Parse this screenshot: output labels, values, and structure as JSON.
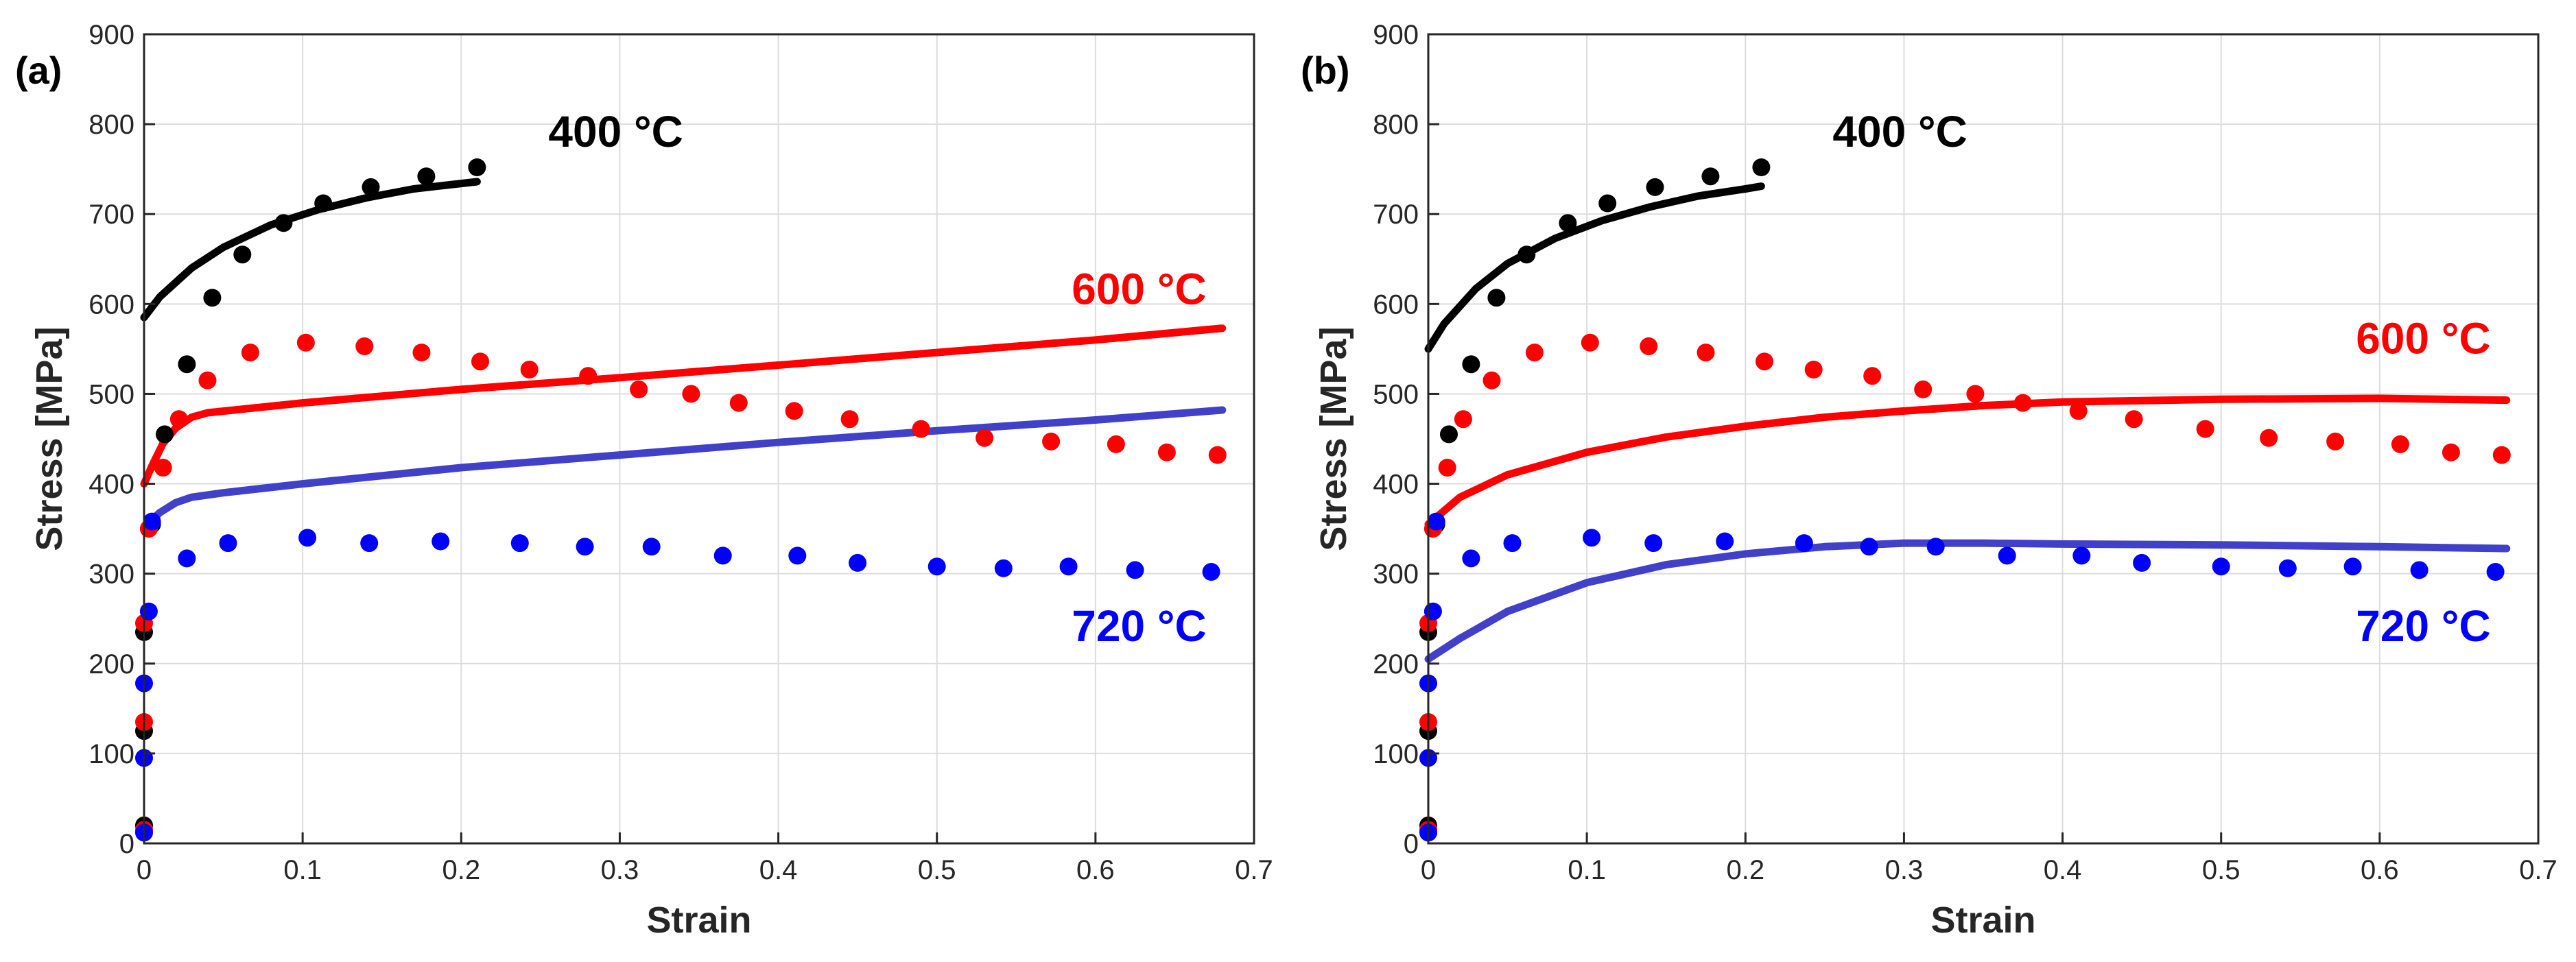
{
  "chart_data": [
    {
      "type": "scatter",
      "panel_label": "(a)",
      "xlabel": "Strain",
      "ylabel": "Stress [MPa]",
      "xlim": [
        0,
        0.7
      ],
      "ylim": [
        0,
        900
      ],
      "xticks": [
        0,
        0.1,
        0.2,
        0.3,
        0.4,
        0.5,
        0.6,
        0.7
      ],
      "xtick_labels": [
        "0",
        "0.1",
        "0.2",
        "0.3",
        "0.4",
        "0.5",
        "0.6",
        "0.7"
      ],
      "yticks": [
        0,
        100,
        200,
        300,
        400,
        500,
        600,
        700,
        800,
        900
      ],
      "ytick_labels": [
        "0",
        "100",
        "200",
        "300",
        "400",
        "500",
        "600",
        "700",
        "800",
        "900"
      ],
      "grid": true,
      "series": [
        {
          "name": "400 °C",
          "color": "#000000",
          "points": [
            [
              0,
              20
            ],
            [
              0,
              125
            ],
            [
              0,
              235
            ],
            [
              0.005,
              355
            ],
            [
              0.013,
              455
            ],
            [
              0.027,
              533
            ],
            [
              0.043,
              607
            ],
            [
              0.062,
              655
            ],
            [
              0.088,
              690
            ],
            [
              0.113,
              712
            ],
            [
              0.143,
              730
            ],
            [
              0.178,
              742
            ],
            [
              0.21,
              752
            ]
          ],
          "fit": [
            [
              0,
              585
            ],
            [
              0.01,
              608
            ],
            [
              0.03,
              640
            ],
            [
              0.05,
              663
            ],
            [
              0.08,
              688
            ],
            [
              0.11,
              705
            ],
            [
              0.14,
              718
            ],
            [
              0.17,
              728
            ],
            [
              0.2,
              734
            ],
            [
              0.21,
              736
            ]
          ]
        },
        {
          "name": "600 °C",
          "color": "#ff0000",
          "points": [
            [
              0,
              15
            ],
            [
              0,
              135
            ],
            [
              0,
              245
            ],
            [
              0.003,
              350
            ],
            [
              0.012,
              418
            ],
            [
              0.022,
              472
            ],
            [
              0.04,
              515
            ],
            [
              0.067,
              546
            ],
            [
              0.102,
              557
            ],
            [
              0.139,
              553
            ],
            [
              0.175,
              546
            ],
            [
              0.212,
              536
            ],
            [
              0.243,
              527
            ],
            [
              0.28,
              520
            ],
            [
              0.312,
              505
            ],
            [
              0.345,
              500
            ],
            [
              0.375,
              490
            ],
            [
              0.41,
              481
            ],
            [
              0.445,
              472
            ],
            [
              0.49,
              461
            ],
            [
              0.53,
              451
            ],
            [
              0.572,
              447
            ],
            [
              0.613,
              444
            ],
            [
              0.645,
              435
            ],
            [
              0.677,
              432
            ]
          ],
          "fit": [
            [
              0,
              400
            ],
            [
              0.005,
              420
            ],
            [
              0.012,
              445
            ],
            [
              0.02,
              462
            ],
            [
              0.03,
              474
            ],
            [
              0.04,
              479
            ],
            [
              0.1,
              490
            ],
            [
              0.2,
              505
            ],
            [
              0.3,
              518
            ],
            [
              0.4,
              532
            ],
            [
              0.5,
              546
            ],
            [
              0.6,
              560
            ],
            [
              0.68,
              573
            ]
          ]
        },
        {
          "name": "720 °C",
          "color": "#0000ff",
          "points": [
            [
              0,
              12
            ],
            [
              0,
              95
            ],
            [
              0,
              178
            ],
            [
              0.003,
              258
            ],
            [
              0.005,
              358
            ],
            [
              0.027,
              317
            ],
            [
              0.053,
              334
            ],
            [
              0.103,
              340
            ],
            [
              0.142,
              334
            ],
            [
              0.187,
              336
            ],
            [
              0.237,
              334
            ],
            [
              0.278,
              330
            ],
            [
              0.32,
              330
            ],
            [
              0.365,
              320
            ],
            [
              0.412,
              320
            ],
            [
              0.45,
              312
            ],
            [
              0.5,
              308
            ],
            [
              0.542,
              306
            ],
            [
              0.583,
              308
            ],
            [
              0.625,
              304
            ],
            [
              0.673,
              302
            ]
          ],
          "fit": [
            [
              0,
              352
            ],
            [
              0.01,
              368
            ],
            [
              0.02,
              379
            ],
            [
              0.03,
              385
            ],
            [
              0.05,
              390
            ],
            [
              0.1,
              400
            ],
            [
              0.2,
              418
            ],
            [
              0.3,
              432
            ],
            [
              0.4,
              446
            ],
            [
              0.5,
              459
            ],
            [
              0.6,
              471
            ],
            [
              0.68,
              482
            ]
          ],
          "fit_color": "#4040c8"
        }
      ],
      "annotations": [
        {
          "text": "400 °C",
          "color": "#000000",
          "x": 0.255,
          "y": 775
        },
        {
          "text": "600 °C",
          "color": "#ff0000",
          "x": 0.67,
          "y": 600
        },
        {
          "text": "720 °C",
          "color": "#0000ff",
          "x": 0.67,
          "y": 225
        }
      ]
    },
    {
      "type": "scatter",
      "panel_label": "(b)",
      "xlabel": "Strain",
      "ylabel": "Stress [MPa]",
      "xlim": [
        0,
        0.7
      ],
      "ylim": [
        0,
        900
      ],
      "xticks": [
        0,
        0.1,
        0.2,
        0.3,
        0.4,
        0.5,
        0.6,
        0.7
      ],
      "xtick_labels": [
        "0",
        "0.1",
        "0.2",
        "0.3",
        "0.4",
        "0.5",
        "0.6",
        "0.7"
      ],
      "yticks": [
        0,
        100,
        200,
        300,
        400,
        500,
        600,
        700,
        800,
        900
      ],
      "ytick_labels": [
        "0",
        "100",
        "200",
        "300",
        "400",
        "500",
        "600",
        "700",
        "800",
        "900"
      ],
      "grid": true,
      "series": [
        {
          "name": "400 °C",
          "color": "#000000",
          "points": [
            [
              0,
              20
            ],
            [
              0,
              125
            ],
            [
              0,
              235
            ],
            [
              0.005,
              355
            ],
            [
              0.013,
              455
            ],
            [
              0.027,
              533
            ],
            [
              0.043,
              607
            ],
            [
              0.062,
              655
            ],
            [
              0.088,
              690
            ],
            [
              0.113,
              712
            ],
            [
              0.143,
              730
            ],
            [
              0.178,
              742
            ],
            [
              0.21,
              752
            ]
          ],
          "fit": [
            [
              0,
              550
            ],
            [
              0.01,
              578
            ],
            [
              0.03,
              617
            ],
            [
              0.05,
              645
            ],
            [
              0.08,
              673
            ],
            [
              0.11,
              693
            ],
            [
              0.14,
              708
            ],
            [
              0.17,
              720
            ],
            [
              0.2,
              728
            ],
            [
              0.21,
              731
            ]
          ]
        },
        {
          "name": "600 °C",
          "color": "#ff0000",
          "points": [
            [
              0,
              15
            ],
            [
              0,
              135
            ],
            [
              0,
              245
            ],
            [
              0.003,
              350
            ],
            [
              0.012,
              418
            ],
            [
              0.022,
              472
            ],
            [
              0.04,
              515
            ],
            [
              0.067,
              546
            ],
            [
              0.102,
              557
            ],
            [
              0.139,
              553
            ],
            [
              0.175,
              546
            ],
            [
              0.212,
              536
            ],
            [
              0.243,
              527
            ],
            [
              0.28,
              520
            ],
            [
              0.312,
              505
            ],
            [
              0.345,
              500
            ],
            [
              0.375,
              490
            ],
            [
              0.41,
              481
            ],
            [
              0.445,
              472
            ],
            [
              0.49,
              461
            ],
            [
              0.53,
              451
            ],
            [
              0.572,
              447
            ],
            [
              0.613,
              444
            ],
            [
              0.645,
              435
            ],
            [
              0.677,
              432
            ]
          ],
          "fit": [
            [
              0,
              355
            ],
            [
              0.02,
              385
            ],
            [
              0.05,
              410
            ],
            [
              0.1,
              435
            ],
            [
              0.15,
              452
            ],
            [
              0.2,
              464
            ],
            [
              0.25,
              474
            ],
            [
              0.3,
              481
            ],
            [
              0.35,
              487
            ],
            [
              0.4,
              491
            ],
            [
              0.5,
              494
            ],
            [
              0.6,
              495
            ],
            [
              0.68,
              493
            ]
          ]
        },
        {
          "name": "720 °C",
          "color": "#0000ff",
          "points": [
            [
              0,
              12
            ],
            [
              0,
              95
            ],
            [
              0,
              178
            ],
            [
              0.003,
              258
            ],
            [
              0.005,
              358
            ],
            [
              0.027,
              317
            ],
            [
              0.053,
              334
            ],
            [
              0.103,
              340
            ],
            [
              0.142,
              334
            ],
            [
              0.187,
              336
            ],
            [
              0.237,
              334
            ],
            [
              0.278,
              330
            ],
            [
              0.32,
              330
            ],
            [
              0.365,
              320
            ],
            [
              0.412,
              320
            ],
            [
              0.45,
              312
            ],
            [
              0.5,
              308
            ],
            [
              0.542,
              306
            ],
            [
              0.583,
              308
            ],
            [
              0.625,
              304
            ],
            [
              0.673,
              302
            ]
          ],
          "fit": [
            [
              0,
              205
            ],
            [
              0.02,
              228
            ],
            [
              0.05,
              258
            ],
            [
              0.1,
              290
            ],
            [
              0.15,
              310
            ],
            [
              0.2,
              322
            ],
            [
              0.25,
              330
            ],
            [
              0.3,
              334
            ],
            [
              0.35,
              334
            ],
            [
              0.4,
              333
            ],
            [
              0.5,
              332
            ],
            [
              0.6,
              330
            ],
            [
              0.68,
              328
            ]
          ],
          "fit_color": "#4040c8"
        }
      ],
      "annotations": [
        {
          "text": "400 °C",
          "color": "#000000",
          "x": 0.255,
          "y": 775
        },
        {
          "text": "600 °C",
          "color": "#ff0000",
          "x": 0.67,
          "y": 545
        },
        {
          "text": "720 °C",
          "color": "#0000ff",
          "x": 0.67,
          "y": 225
        }
      ]
    }
  ]
}
